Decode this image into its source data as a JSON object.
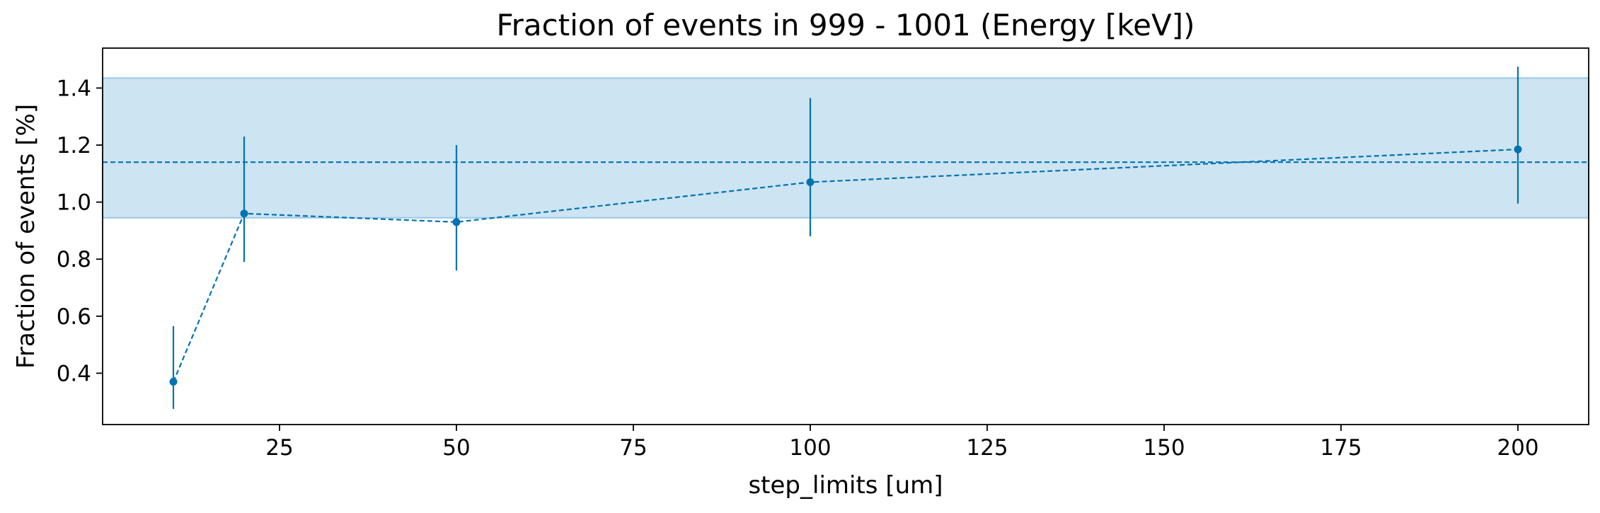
{
  "chart_data": {
    "type": "line",
    "title": "Fraction of events in 999 - 1001 (Energy [keV])",
    "xlabel": "step_limits [um]",
    "ylabel": "Fraction of events [%]",
    "xlim": [
      0,
      210
    ],
    "ylim": [
      0.22,
      1.54
    ],
    "xticks": [
      25,
      50,
      75,
      100,
      125,
      150,
      175,
      200
    ],
    "yticks": [
      0.4,
      0.6,
      0.8,
      1.0,
      1.2,
      1.4
    ],
    "xtick_labels": [
      "25",
      "50",
      "75",
      "100",
      "125",
      "150",
      "175",
      "200"
    ],
    "ytick_labels": [
      "0.4",
      "0.6",
      "0.8",
      "1.0",
      "1.2",
      "1.4"
    ],
    "series": [
      {
        "x": [
          10,
          20,
          50,
          100,
          200
        ],
        "y": [
          0.37,
          0.96,
          0.93,
          1.07,
          1.185
        ],
        "yerr_low": [
          0.275,
          0.79,
          0.76,
          0.88,
          0.995
        ],
        "yerr_high": [
          0.565,
          1.23,
          1.2,
          1.365,
          1.475
        ],
        "linestyle": "dashed",
        "marker": "circle"
      }
    ],
    "reference_line": {
      "y": 1.14,
      "linestyle": "dashed"
    },
    "band": {
      "y_low": 0.945,
      "y_high": 1.435
    },
    "grid": false,
    "colors": {
      "series": "#0072b2",
      "band_fill": "#cde4f2",
      "band_edge": "#9cc8e6"
    }
  }
}
